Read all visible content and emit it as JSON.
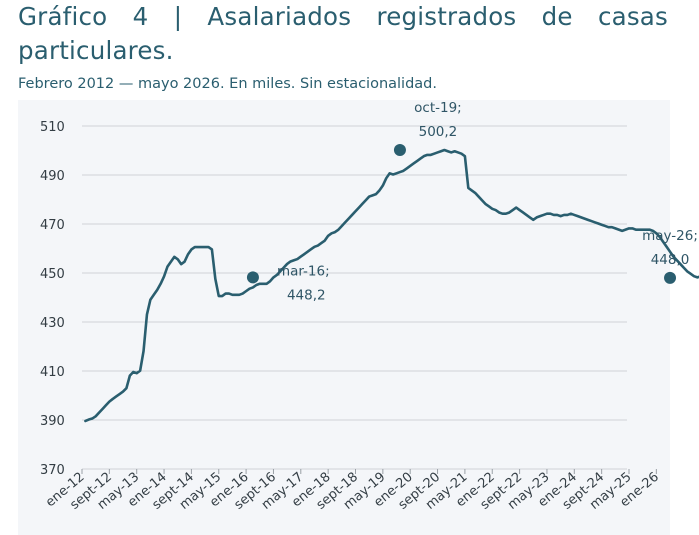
{
  "chart_data": {
    "type": "line",
    "title": "Gráfico 4 | Asalariados registrados de casas particulares.",
    "subtitle": "Febrero 2012 — mayo 2026. En miles. Sin estacionalidad.",
    "xlabel": "",
    "ylabel": "",
    "ylim": [
      370,
      510
    ],
    "yticks": [
      "370",
      "390",
      "410",
      "430",
      "450",
      "470",
      "490",
      "510"
    ],
    "xticks": [
      "ene-12",
      "sept-12",
      "may-13",
      "ene-14",
      "sept-14",
      "may-15",
      "ene-16",
      "sept-16",
      "may-17",
      "ene-18",
      "sept-18",
      "may-19",
      "ene-20",
      "sept-20",
      "may-21",
      "ene-22",
      "sept-22",
      "may-23",
      "ene-24",
      "sept-24",
      "may-25",
      "ene-26"
    ],
    "grid": "horizontal",
    "series_color": "#2a5e6f",
    "series": [
      {
        "x_start": "feb-12",
        "values": [
          389.6,
          390.2,
          390.6,
          391.5,
          393.0,
          394.5,
          396.0,
          397.5,
          398.6,
          399.6,
          400.6,
          401.6,
          403.0,
          408.1,
          409.6,
          409.1,
          410.1,
          418.1,
          433.1,
          439.1,
          441.1,
          443.1,
          445.6,
          448.6,
          452.6,
          454.6,
          456.6,
          455.6,
          453.6,
          454.6,
          457.6,
          459.6,
          460.6,
          460.6,
          460.6,
          460.6,
          460.6,
          459.6,
          447.6,
          440.6,
          440.6,
          441.6,
          441.6,
          441.1,
          441.1,
          441.1,
          441.6,
          442.6,
          443.6,
          444.1,
          445.1,
          445.6,
          445.6,
          445.6,
          446.6,
          448.2,
          449.2,
          450.7,
          452.2,
          453.7,
          454.7,
          455.2,
          455.7,
          456.7,
          457.7,
          458.7,
          459.7,
          460.7,
          461.2,
          462.2,
          463.2,
          465.2,
          466.2,
          466.7,
          467.7,
          469.2,
          470.7,
          472.2,
          473.7,
          475.2,
          476.7,
          478.2,
          479.7,
          481.2,
          481.7,
          482.2,
          483.7,
          485.7,
          488.7,
          490.7,
          490.2,
          490.7,
          491.2,
          491.7,
          492.7,
          493.7,
          494.7,
          495.7,
          496.7,
          497.7,
          498.2,
          498.2,
          498.7,
          499.2,
          499.7,
          500.2,
          499.7,
          499.2,
          499.7,
          499.2,
          498.7,
          497.7,
          484.7,
          483.7,
          482.7,
          481.2,
          479.7,
          478.2,
          477.2,
          476.2,
          475.7,
          474.7,
          474.2,
          474.2,
          474.7,
          475.7,
          476.7,
          475.7,
          474.7,
          473.7,
          472.7,
          471.7,
          472.7,
          473.2,
          473.7,
          474.2,
          474.2,
          473.7,
          473.7,
          473.2,
          473.7,
          473.7,
          474.2,
          473.7,
          473.2,
          472.7,
          472.2,
          471.7,
          471.2,
          470.7,
          470.2,
          469.7,
          469.2,
          468.7,
          468.7,
          468.2,
          467.7,
          467.2,
          467.7,
          468.2,
          468.2,
          467.7,
          467.7,
          467.7,
          467.7,
          467.7,
          467.2,
          466.2,
          464.7,
          462.7,
          460.7,
          458.7,
          456.7,
          455.2,
          453.7,
          452.2,
          450.7,
          449.7,
          448.7,
          448.2,
          448.7,
          448.2,
          447.7,
          446.7,
          445.7,
          444.7,
          444.2,
          444.2,
          444.2,
          443.7,
          442.7,
          441.7,
          440.7,
          440.2,
          439.7,
          439.2,
          438.7,
          437.7,
          438.2,
          440.7,
          443.7,
          444.7,
          445.7,
          446.2,
          446.7,
          447.2,
          447.7,
          448.0
        ]
      }
    ],
    "annotations": [
      {
        "x": "mar-16",
        "y": 448.2,
        "line1": "mar-16;",
        "line2": "448,2"
      },
      {
        "x": "oct-19",
        "y": 500.2,
        "line1": "oct-19;",
        "line2": "500,2"
      },
      {
        "x": "may-26",
        "y": 448.0,
        "line1": "may-26;",
        "line2": "448,0"
      }
    ]
  }
}
